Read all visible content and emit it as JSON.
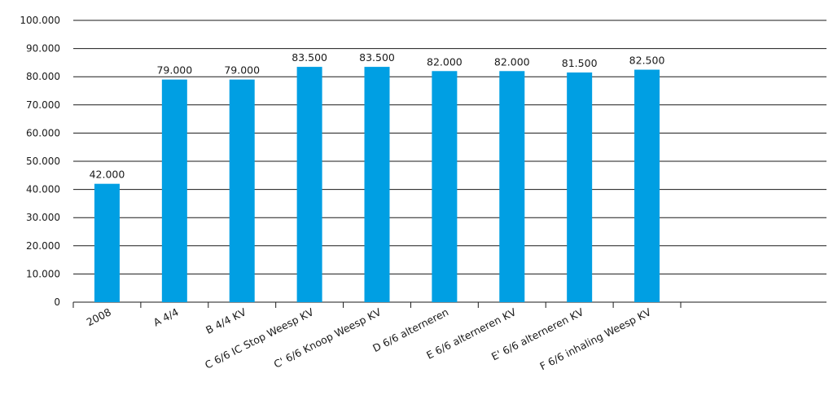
{
  "chart_data": {
    "type": "bar",
    "categories": [
      "2008",
      "A 4/4",
      "B 4/4 KV",
      "C 6/6 IC Stop Weesp KV",
      "C' 6/6 Knoop Weesp KV",
      "D 6/6 alterneren",
      "E 6/6 alterneren KV",
      "E' 6/6 alterneren KV",
      "F 6/6 inhaling Weesp KV"
    ],
    "values": [
      42000,
      79000,
      79000,
      83500,
      83500,
      82000,
      82000,
      81500,
      82500
    ],
    "value_labels": [
      "42.000",
      "79.000",
      "79.000",
      "83.500",
      "83.500",
      "82.000",
      "82.000",
      "81.500",
      "82.500"
    ],
    "y_ticks": [
      0,
      10000,
      20000,
      30000,
      40000,
      50000,
      60000,
      70000,
      80000,
      90000,
      100000
    ],
    "y_tick_labels": [
      "0",
      "10.000",
      "20.000",
      "30.000",
      "40.000",
      "50.000",
      "60.000",
      "70.000",
      "80.000",
      "90.000",
      "100.000"
    ],
    "ylim": [
      0,
      100000
    ],
    "title": "",
    "xlabel": "",
    "ylabel": "",
    "grid": true,
    "colors": {
      "bar": "#009fe3",
      "grid": "#1a1a1a"
    }
  }
}
